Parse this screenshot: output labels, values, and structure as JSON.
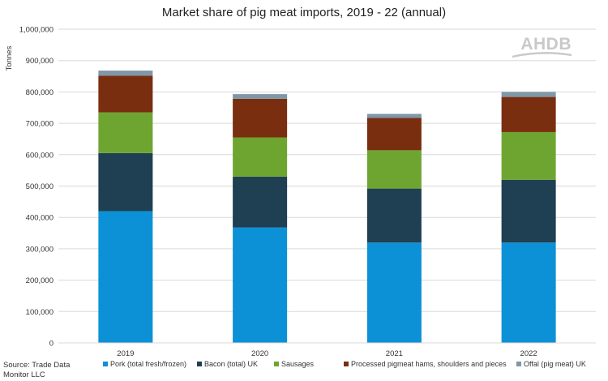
{
  "chart_data": {
    "type": "bar",
    "stacked": true,
    "title": "Market share of pig meat imports, 2019 - 22 (annual)",
    "ylabel": "Tonnes",
    "xlabel": "",
    "ylim": [
      0,
      1000000
    ],
    "ytick_labels": [
      "0",
      "100,000",
      "200,000",
      "300,000",
      "400,000",
      "500,000",
      "600,000",
      "700,000",
      "800,000",
      "900,000",
      "1,000,000"
    ],
    "categories": [
      "2019",
      "2020",
      "2021",
      "2022"
    ],
    "series": [
      {
        "name": "Pork (total fresh/frozen)",
        "color": "#0c91d6",
        "values": [
          420000,
          368000,
          320000,
          320000
        ]
      },
      {
        "name": "Bacon (total) UK",
        "color": "#1f3f52",
        "values": [
          185000,
          162000,
          172000,
          200000
        ]
      },
      {
        "name": "Sausages",
        "color": "#6ea531",
        "values": [
          130000,
          125000,
          122000,
          152000
        ]
      },
      {
        "name": "Processed pigmeat hams, shoulders and pieces",
        "color": "#7a2e10",
        "values": [
          117000,
          123000,
          103000,
          112000
        ]
      },
      {
        "name": "Offal (pig meat) UK",
        "color": "#7f97a6",
        "values": [
          16000,
          15000,
          13000,
          16000
        ]
      }
    ],
    "grid": true,
    "legend_position": "bottom"
  },
  "source": {
    "line1": "Source: Trade Data",
    "line2": "Monitor LLC"
  },
  "logo": {
    "text": "AHDB"
  }
}
